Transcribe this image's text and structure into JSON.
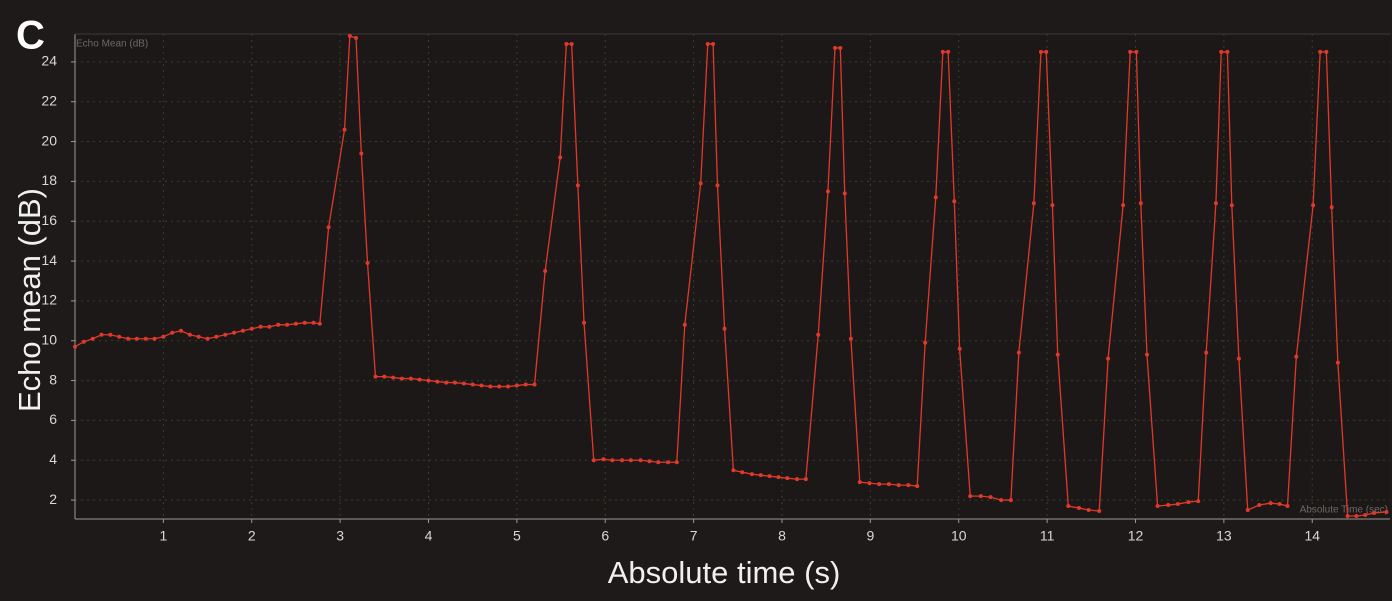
{
  "chart_data": {
    "type": "line",
    "panel_label": "C",
    "y_label": "Echo mean (dB)",
    "x_label": "Absolute time (s)",
    "annotations": [
      "Echo Mean (dB)",
      "Absolute Time (sec)"
    ],
    "color": "#e0392c",
    "grid": true,
    "xlim": [
      0,
      14.88
    ],
    "ylim": [
      1.05,
      25.4
    ],
    "xticks": [
      1,
      2,
      3,
      4,
      5,
      6,
      7,
      8,
      9,
      10,
      11,
      12,
      13,
      14
    ],
    "yticks": [
      2,
      4,
      6,
      8,
      10,
      12,
      14,
      16,
      18,
      20,
      22,
      24
    ],
    "x": [
      0,
      0.1,
      0.2,
      0.3,
      0.4,
      0.5,
      0.6,
      0.7,
      0.8,
      0.9,
      1.0,
      1.1,
      1.2,
      1.3,
      1.4,
      1.5,
      1.6,
      1.7,
      1.8,
      1.9,
      2.0,
      2.1,
      2.2,
      2.3,
      2.4,
      2.5,
      2.6,
      2.7,
      2.77,
      2.87,
      3.05,
      3.11,
      3.18,
      3.24,
      3.31,
      3.4,
      3.5,
      3.6,
      3.7,
      3.8,
      3.9,
      4.0,
      4.1,
      4.2,
      4.3,
      4.4,
      4.5,
      4.6,
      4.7,
      4.8,
      4.9,
      5.0,
      5.1,
      5.2,
      5.32,
      5.49,
      5.56,
      5.62,
      5.69,
      5.76,
      5.87,
      5.98,
      6.08,
      6.19,
      6.29,
      6.4,
      6.5,
      6.6,
      6.71,
      6.81,
      6.9,
      7.08,
      7.16,
      7.22,
      7.27,
      7.35,
      7.45,
      7.55,
      7.66,
      7.76,
      7.86,
      7.96,
      8.06,
      8.17,
      8.27,
      8.41,
      8.52,
      8.6,
      8.66,
      8.71,
      8.78,
      8.88,
      8.99,
      9.1,
      9.21,
      9.32,
      9.43,
      9.53,
      9.62,
      9.74,
      9.82,
      9.88,
      9.95,
      10.01,
      10.13,
      10.25,
      10.36,
      10.48,
      10.59,
      10.68,
      10.85,
      10.93,
      10.99,
      11.06,
      11.12,
      11.24,
      11.36,
      11.47,
      11.59,
      11.69,
      11.86,
      11.94,
      12.01,
      12.06,
      12.13,
      12.25,
      12.37,
      12.48,
      12.6,
      12.71,
      12.8,
      12.91,
      12.97,
      13.04,
      13.09,
      13.17,
      13.27,
      13.4,
      13.53,
      13.63,
      13.72,
      13.82,
      14.01,
      14.09,
      14.16,
      14.22,
      14.29,
      14.4,
      14.5,
      14.6,
      14.7,
      14.84
    ],
    "values": [
      9.7,
      9.95,
      10.1,
      10.3,
      10.3,
      10.2,
      10.1,
      10.1,
      10.1,
      10.1,
      10.2,
      10.4,
      10.5,
      10.3,
      10.2,
      10.1,
      10.2,
      10.3,
      10.4,
      10.5,
      10.6,
      10.7,
      10.7,
      10.8,
      10.8,
      10.85,
      10.9,
      10.9,
      10.85,
      15.7,
      20.6,
      25.3,
      25.2,
      19.4,
      13.9,
      8.2,
      8.2,
      8.15,
      8.1,
      8.1,
      8.05,
      8.0,
      7.95,
      7.9,
      7.9,
      7.85,
      7.8,
      7.75,
      7.7,
      7.7,
      7.7,
      7.75,
      7.8,
      7.8,
      13.5,
      19.2,
      24.9,
      24.9,
      17.8,
      10.9,
      4.0,
      4.05,
      4.0,
      4.0,
      4.0,
      4.0,
      3.95,
      3.9,
      3.9,
      3.9,
      10.8,
      17.9,
      24.9,
      24.9,
      17.8,
      10.6,
      3.5,
      3.4,
      3.3,
      3.25,
      3.2,
      3.15,
      3.1,
      3.05,
      3.05,
      10.3,
      17.5,
      24.7,
      24.7,
      17.4,
      10.1,
      2.9,
      2.85,
      2.8,
      2.8,
      2.75,
      2.75,
      2.7,
      9.9,
      17.2,
      24.5,
      24.5,
      17.0,
      9.6,
      2.2,
      2.2,
      2.15,
      2.0,
      2.0,
      9.4,
      16.9,
      24.5,
      24.5,
      16.8,
      9.3,
      1.7,
      1.6,
      1.5,
      1.45,
      9.1,
      16.8,
      24.5,
      24.5,
      16.9,
      9.3,
      1.7,
      1.75,
      1.8,
      1.9,
      1.95,
      9.4,
      16.9,
      24.5,
      24.5,
      16.8,
      9.1,
      1.5,
      1.75,
      1.85,
      1.8,
      1.7,
      9.2,
      16.8,
      24.5,
      24.5,
      16.7,
      8.9,
      1.2,
      1.2,
      1.25,
      1.35,
      1.4
    ]
  }
}
